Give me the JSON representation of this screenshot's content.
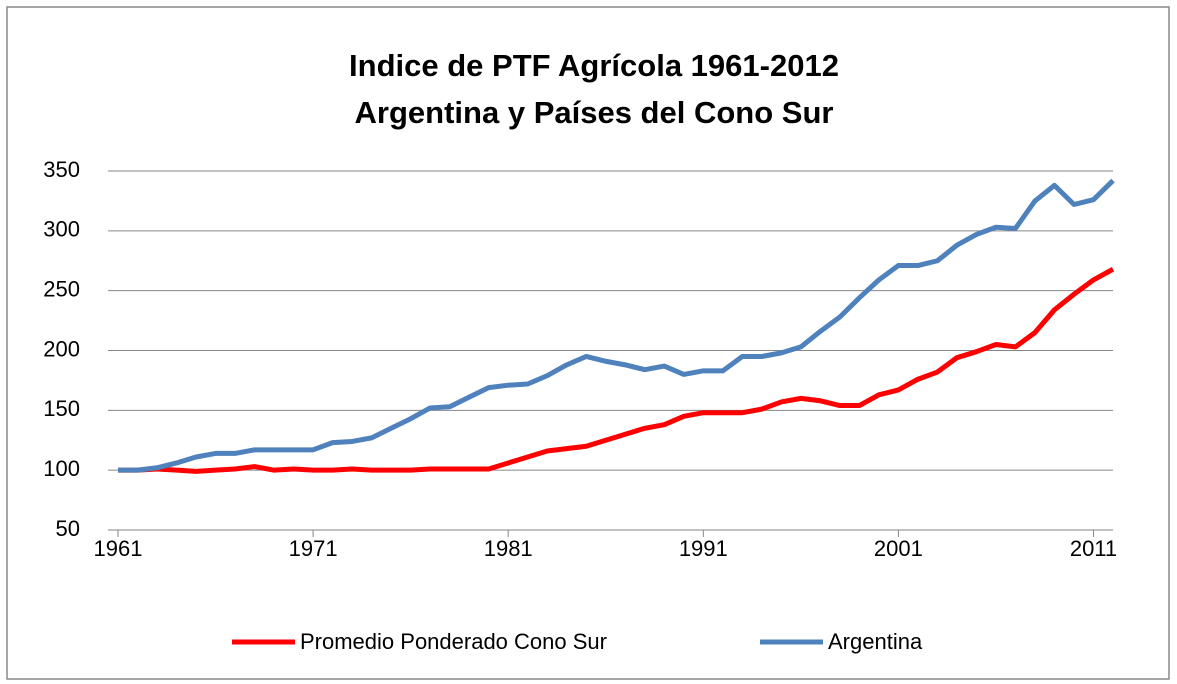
{
  "chart_data": {
    "type": "line",
    "title": "Indice de PTF Agrícola 1961-2012",
    "subtitle": "Argentina y Países del Cono Sur",
    "x": [
      1961,
      1962,
      1963,
      1964,
      1965,
      1966,
      1967,
      1968,
      1969,
      1970,
      1971,
      1972,
      1973,
      1974,
      1975,
      1976,
      1977,
      1978,
      1979,
      1980,
      1981,
      1982,
      1983,
      1984,
      1985,
      1986,
      1987,
      1988,
      1989,
      1990,
      1991,
      1992,
      1993,
      1994,
      1995,
      1996,
      1997,
      1998,
      1999,
      2000,
      2001,
      2002,
      2003,
      2004,
      2005,
      2006,
      2007,
      2008,
      2009,
      2010,
      2011,
      2012
    ],
    "series": [
      {
        "name": "Promedio Ponderado Cono Sur",
        "color": "#ff0000",
        "values": [
          100,
          100,
          101,
          100,
          99,
          100,
          101,
          103,
          100,
          101,
          100,
          100,
          101,
          100,
          100,
          100,
          101,
          101,
          101,
          101,
          106,
          111,
          116,
          118,
          120,
          125,
          130,
          135,
          138,
          145,
          148,
          148,
          148,
          151,
          157,
          160,
          158,
          154,
          154,
          163,
          167,
          176,
          182,
          194,
          199,
          205,
          203,
          215,
          234,
          247,
          259,
          268
        ]
      },
      {
        "name": "Argentina",
        "color": "#4f81bd",
        "values": [
          100,
          100,
          102,
          106,
          111,
          114,
          114,
          117,
          117,
          117,
          117,
          123,
          124,
          127,
          135,
          143,
          152,
          153,
          161,
          169,
          171,
          172,
          179,
          188,
          195,
          191,
          188,
          184,
          187,
          180,
          183,
          183,
          195,
          195,
          198,
          203,
          216,
          228,
          244,
          259,
          271,
          271,
          275,
          288,
          297,
          303,
          302,
          325,
          338,
          322,
          326,
          342
        ]
      }
    ],
    "xlim": [
      1961,
      2012
    ],
    "xticks": [
      1961,
      1971,
      1981,
      1991,
      2001,
      2011
    ],
    "ylim": [
      50,
      350
    ],
    "yticks": [
      50,
      100,
      150,
      200,
      250,
      300,
      350
    ],
    "grid": true,
    "legend": "bottom"
  }
}
